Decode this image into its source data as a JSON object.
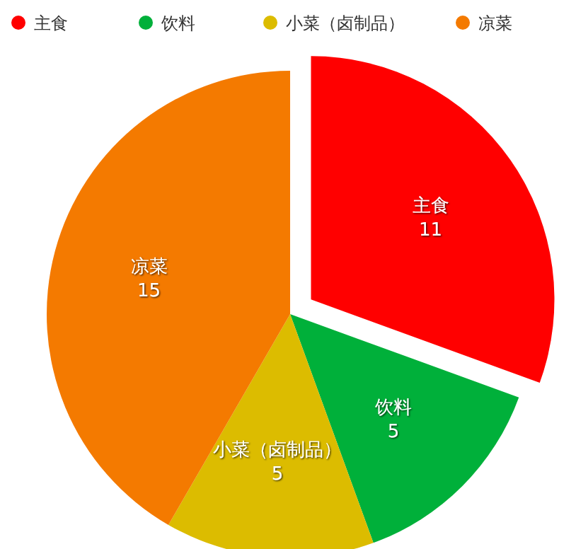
{
  "chart_data": {
    "type": "pie",
    "categories": [
      "主食",
      "饮料",
      "小菜（卤制品）",
      "凉菜"
    ],
    "values": [
      11,
      5,
      5,
      15
    ],
    "colors": [
      "#ff0000",
      "#00b03a",
      "#dcbc00",
      "#f47a00"
    ],
    "data_labels": true,
    "legend": "top"
  }
}
